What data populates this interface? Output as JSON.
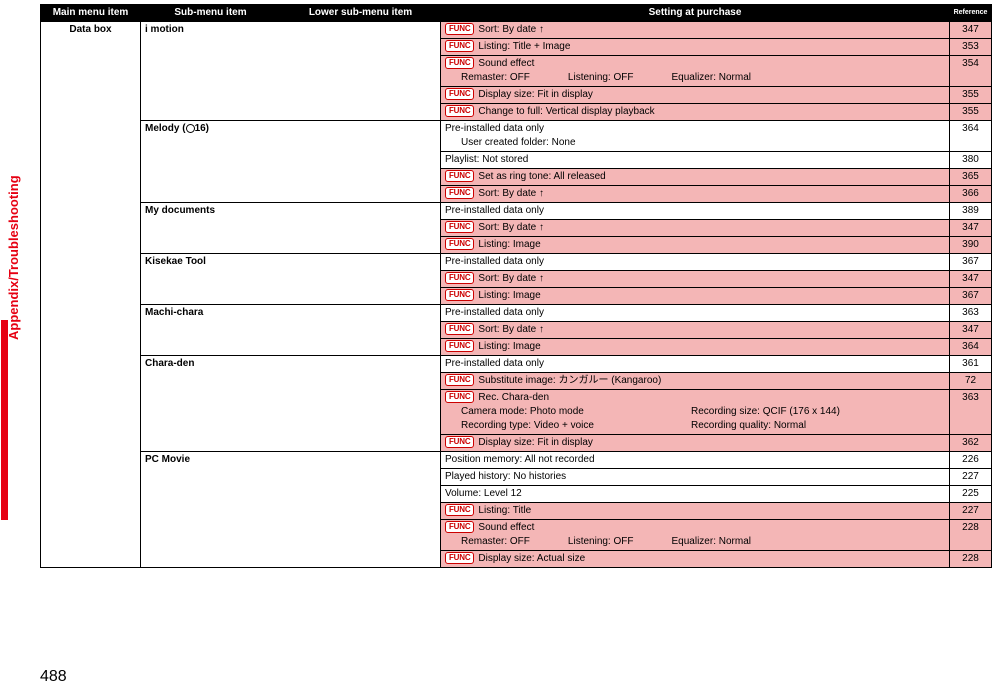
{
  "headers": {
    "main": "Main menu item",
    "sub": "Sub-menu item",
    "lower": "Lower sub-menu item",
    "setting": "Setting at purchase",
    "ref": "Reference"
  },
  "func_label": "FUNC",
  "main_item": "Data box",
  "sidebar": "Appendix/Troubleshooting",
  "page_number": "488",
  "rows": [
    {
      "sub": "i motion",
      "sub_rowspan": 5,
      "pink": true,
      "func": true,
      "text": "Sort: By date ↑",
      "ref": "347"
    },
    {
      "pink": true,
      "func": true,
      "text": "Listing: Title + Image",
      "ref": "353"
    },
    {
      "pink": true,
      "func": true,
      "text": "Sound effect",
      "ref": "354",
      "details": [
        "Remaster: OFF",
        "Listening: OFF",
        "Equalizer: Normal"
      ]
    },
    {
      "pink": true,
      "func": true,
      "text": "Display size: Fit in display",
      "ref": "355"
    },
    {
      "pink": true,
      "func": true,
      "text": "Change to full: Vertical display playback",
      "ref": "355"
    },
    {
      "sub": "Melody (⊙16)",
      "sub_rowspan": 4,
      "pink": false,
      "func": false,
      "text": "Pre-installed data only",
      "ref": "364",
      "sublines": [
        "User created folder: None"
      ]
    },
    {
      "pink": false,
      "func": false,
      "text": "Playlist: Not stored",
      "ref": "380"
    },
    {
      "pink": true,
      "func": true,
      "text": "Set as ring tone: All released",
      "ref": "365"
    },
    {
      "pink": true,
      "func": true,
      "text": "Sort: By date ↑",
      "ref": "366"
    },
    {
      "sub": "My documents",
      "sub_rowspan": 3,
      "pink": false,
      "func": false,
      "text": "Pre-installed data only",
      "ref": "389"
    },
    {
      "pink": true,
      "func": true,
      "text": "Sort: By date ↑",
      "ref": "347"
    },
    {
      "pink": true,
      "func": true,
      "text": "Listing: Image",
      "ref": "390"
    },
    {
      "sub": "Kisekae Tool",
      "sub_rowspan": 3,
      "pink": false,
      "func": false,
      "text": "Pre-installed data only",
      "ref": "367"
    },
    {
      "pink": true,
      "func": true,
      "text": "Sort: By date ↑",
      "ref": "347"
    },
    {
      "pink": true,
      "func": true,
      "text": "Listing: Image",
      "ref": "367"
    },
    {
      "sub": "Machi-chara",
      "sub_rowspan": 3,
      "pink": false,
      "func": false,
      "text": "Pre-installed data only",
      "ref": "363"
    },
    {
      "pink": true,
      "func": true,
      "text": "Sort: By date ↑",
      "ref": "347"
    },
    {
      "pink": true,
      "func": true,
      "text": "Listing: Image",
      "ref": "364"
    },
    {
      "sub": "Chara-den",
      "sub_rowspan": 4,
      "pink": false,
      "func": false,
      "text": "Pre-installed data only",
      "ref": "361"
    },
    {
      "pink": true,
      "func": true,
      "text": "Substitute image: カンガルー (Kangaroo)",
      "ref": "72"
    },
    {
      "pink": true,
      "func": true,
      "text": "Rec. Chara-den",
      "ref": "363",
      "details2": [
        [
          "Camera mode: Photo mode",
          "Recording size: QCIF (176 x 144)"
        ],
        [
          "Recording type: Video + voice",
          "Recording quality: Normal"
        ]
      ]
    },
    {
      "pink": true,
      "func": true,
      "text": "Display size: Fit in display",
      "ref": "362"
    },
    {
      "sub": "PC Movie",
      "sub_rowspan": 6,
      "pink": false,
      "func": false,
      "text": "Position memory: All not recorded",
      "ref": "226"
    },
    {
      "pink": false,
      "func": false,
      "text": "Played history: No histories",
      "ref": "227"
    },
    {
      "pink": false,
      "func": false,
      "text": "Volume: Level 12",
      "ref": "225"
    },
    {
      "pink": true,
      "func": true,
      "text": "Listing: Title",
      "ref": "227"
    },
    {
      "pink": true,
      "func": true,
      "text": "Sound effect",
      "ref": "228",
      "details": [
        "Remaster: OFF",
        "Listening: OFF",
        "Equalizer: Normal"
      ]
    },
    {
      "pink": true,
      "func": true,
      "text": "Display size: Actual size",
      "ref": "228"
    }
  ]
}
